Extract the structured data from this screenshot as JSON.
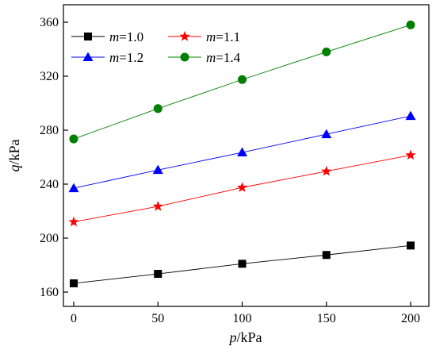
{
  "chart_data": {
    "type": "line",
    "xlabel": {
      "var": "p",
      "unit": "/kPa"
    },
    "ylabel": {
      "var": "q",
      "unit": "/kPa"
    },
    "xlim": [
      -10,
      210
    ],
    "ylim": [
      150,
      370
    ],
    "x_ticks": [
      0,
      50,
      100,
      150,
      200
    ],
    "y_ticks": [
      160,
      200,
      240,
      280,
      320,
      360
    ],
    "x_tick_labels": [
      "0",
      "50",
      "100",
      "150",
      "200"
    ],
    "y_tick_labels": [
      "160",
      "200",
      "240",
      "280",
      "320",
      "360"
    ],
    "grid": false,
    "legend_position": "top-left",
    "x": [
      0,
      50,
      100,
      150,
      200
    ],
    "series": [
      {
        "name": "m=1.0",
        "var": "m",
        "val": "=1.0",
        "marker": "square",
        "color": "#000000",
        "values": [
          166.5,
          173.5,
          181,
          187.5,
          194.5
        ]
      },
      {
        "name": "m=1.1",
        "var": "m",
        "val": "=1.1",
        "marker": "star",
        "color": "#ff0000",
        "values": [
          212,
          223.5,
          237.5,
          249.5,
          261.5
        ]
      },
      {
        "name": "m=1.2",
        "var": "m",
        "val": "=1.2",
        "marker": "triangle",
        "color": "#0000ff",
        "values": [
          237,
          250.5,
          263.5,
          277,
          290.5
        ]
      },
      {
        "name": "m=1.4",
        "var": "m",
        "val": "=1.4",
        "marker": "circle",
        "color": "#008000",
        "values": [
          273.5,
          296,
          317.5,
          338,
          358
        ]
      }
    ]
  }
}
